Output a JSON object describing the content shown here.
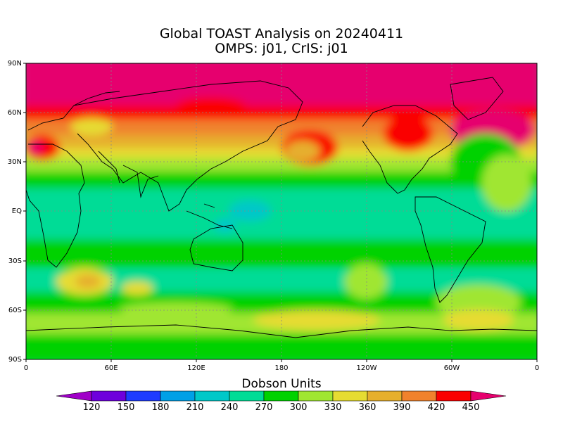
{
  "title": "Global TOAST Analysis on 20240411",
  "subtitle": "OMPS: j01, CrIS: j01",
  "colorbar": {
    "title": "Dobson Units",
    "ticks": [
      "120",
      "150",
      "180",
      "210",
      "240",
      "270",
      "300",
      "330",
      "360",
      "390",
      "420",
      "450"
    ],
    "colors": [
      "#a000c8",
      "#6e00dc",
      "#1e3cff",
      "#00a0e6",
      "#00c8c8",
      "#00dc96",
      "#00d200",
      "#a0e632",
      "#e6dc32",
      "#e6af2d",
      "#f0822d",
      "#fa0000",
      "#e6006e"
    ]
  },
  "axes": {
    "y_labels": [
      "90N",
      "60N",
      "30N",
      "EQ",
      "30S",
      "60S",
      "90S"
    ],
    "x_labels": [
      "0",
      "60E",
      "120E",
      "180",
      "120W",
      "60W",
      "0"
    ]
  },
  "ocean_color": "#00dc96",
  "coast_color": "#000000"
}
